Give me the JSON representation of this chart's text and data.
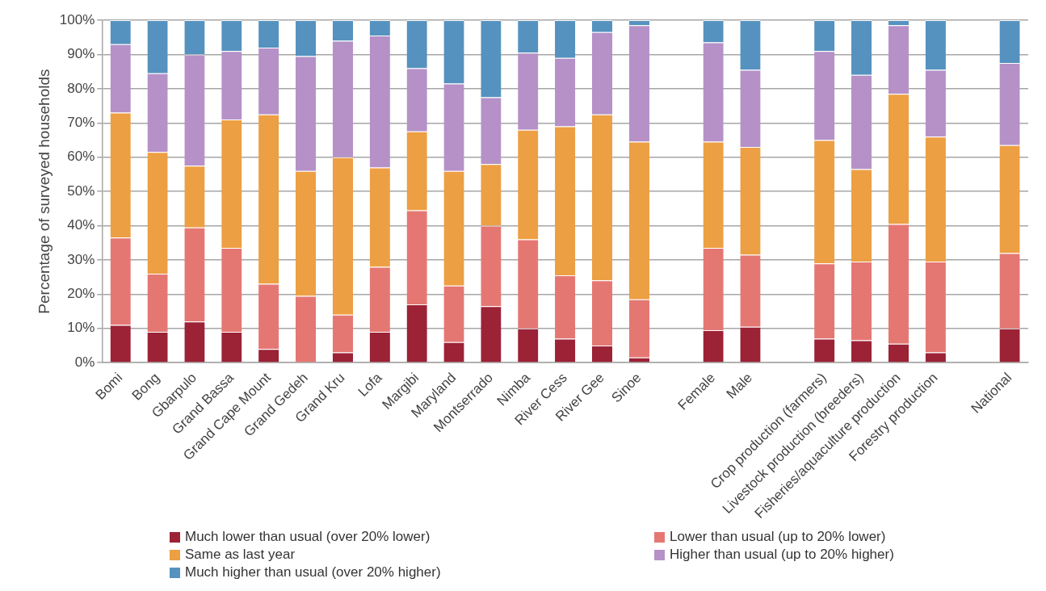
{
  "chart_data": {
    "type": "bar",
    "stacked": true,
    "ylabel": "Percentage of surveyed households",
    "categories": [
      "Bomi",
      "Bong",
      "Gbarpulo",
      "Grand Bassa",
      "Grand Cape Mount",
      "Grand Gedeh",
      "Grand Kru",
      "Lofa",
      "Margibi",
      "Maryland",
      "Montserrado",
      "Nimba",
      "River Cess",
      "River Gee",
      "Sinoe",
      null,
      "Female",
      "Male",
      null,
      "Crop production (farmers)",
      "Livestock production (breeders)",
      "Fisheries/aquaculture production",
      "Forestry production",
      null,
      "National"
    ],
    "series": [
      {
        "name": "Much lower than usual (over 20% lower)",
        "color": "#9c2236",
        "values": [
          11,
          9,
          12,
          9,
          4,
          0,
          3,
          9,
          17,
          6,
          16.5,
          10,
          7,
          5,
          1.5,
          null,
          9.5,
          10.5,
          null,
          7,
          6.5,
          5.5,
          3,
          null,
          10
        ]
      },
      {
        "name": "Lower than usual (up to 20% lower)",
        "color": "#e57773",
        "values": [
          25.5,
          17,
          27.5,
          24.5,
          19,
          19.5,
          11,
          19,
          27.5,
          16.5,
          23.5,
          26,
          18.5,
          19,
          17,
          null,
          24,
          21,
          null,
          22,
          23,
          35,
          26.5,
          null,
          22
        ]
      },
      {
        "name": "Same as last year",
        "color": "#ed9f43",
        "values": [
          36.5,
          35.5,
          18,
          37.5,
          49.5,
          36.5,
          46,
          29,
          23,
          33.5,
          18,
          32,
          43.5,
          48.5,
          46,
          null,
          31,
          31.5,
          null,
          36,
          27,
          38,
          36.5,
          null,
          31.5
        ]
      },
      {
        "name": "Higher than usual (up to 20% higher)",
        "color": "#b591c8",
        "values": [
          20,
          23,
          32.5,
          20,
          19.5,
          33.5,
          34,
          38.5,
          18.5,
          25.5,
          19.5,
          22.5,
          20,
          24,
          34,
          null,
          29,
          22.5,
          null,
          26,
          27.5,
          20,
          19.5,
          null,
          24
        ]
      },
      {
        "name": "Much higher than usual (over 20% higher)",
        "color": "#5592bf",
        "values": [
          7,
          15.5,
          10,
          9,
          8,
          10.5,
          6,
          4.5,
          14,
          18.5,
          22.5,
          9.5,
          11,
          3.5,
          1.5,
          null,
          6.5,
          14.5,
          null,
          9,
          16,
          1.5,
          14.5,
          null,
          12.5
        ]
      }
    ],
    "ylim": [
      0,
      100
    ],
    "yticks": [
      {
        "value": 0,
        "label": "0%"
      },
      {
        "value": 10,
        "label": "10%"
      },
      {
        "value": 20,
        "label": "20%"
      },
      {
        "value": 30,
        "label": "30%"
      },
      {
        "value": 40,
        "label": "40%"
      },
      {
        "value": 50,
        "label": "50%"
      },
      {
        "value": 60,
        "label": "60%"
      },
      {
        "value": 70,
        "label": "70%"
      },
      {
        "value": 80,
        "label": "80%"
      },
      {
        "value": 90,
        "label": "90%"
      },
      {
        "value": 100,
        "label": "100%"
      }
    ],
    "grid": "y",
    "legend": "bottom"
  }
}
